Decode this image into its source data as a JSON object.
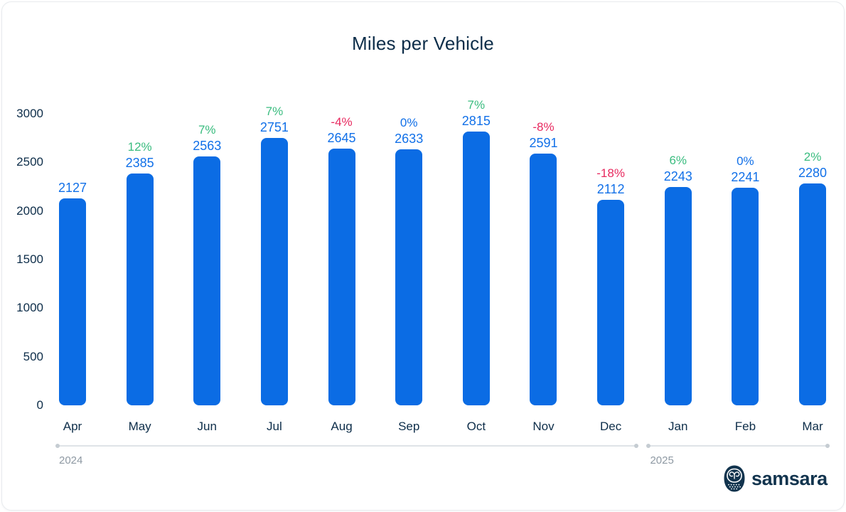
{
  "title": "Miles per Vehicle",
  "chart_data": {
    "type": "bar",
    "title": "Miles per Vehicle",
    "categories": [
      "Apr",
      "May",
      "Jun",
      "Jul",
      "Aug",
      "Sep",
      "Oct",
      "Nov",
      "Dec",
      "Jan",
      "Feb",
      "Mar"
    ],
    "values": [
      2127,
      2385,
      2563,
      2751,
      2645,
      2633,
      2815,
      2591,
      2112,
      2243,
      2241,
      2280
    ],
    "pct_change_labels": [
      null,
      "12%",
      "7%",
      "7%",
      "-4%",
      "0%",
      "7%",
      "-8%",
      "-18%",
      "6%",
      "0%",
      "2%"
    ],
    "pct_change_trend": [
      null,
      "up",
      "up",
      "up",
      "down",
      "zero",
      "up",
      "down",
      "down",
      "up",
      "zero",
      "up"
    ],
    "xlabel": "",
    "ylabel": "",
    "ylim": [
      0,
      3000
    ],
    "yticks": [
      0,
      500,
      1000,
      1500,
      2000,
      2500,
      3000
    ],
    "grid": false,
    "legend": false,
    "x_axis_groups": [
      {
        "label": "2024",
        "start_index": 0,
        "end_index": 8
      },
      {
        "label": "2025",
        "start_index": 9,
        "end_index": 11
      }
    ]
  },
  "colors": {
    "bar": "#0b6ce4",
    "value_label": "#1170e8",
    "positive": "#3abc7f",
    "negative": "#e8295f",
    "axis_text": "#0d2d49",
    "year_label": "#8e99a3",
    "timeline_line": "#dfe3e7",
    "timeline_dot": "#c5ccd2",
    "title_text": "#0d2d49",
    "card_background": "#ffffff",
    "card_border": "#e8ebee"
  },
  "footer": {
    "brand": "samsara"
  }
}
